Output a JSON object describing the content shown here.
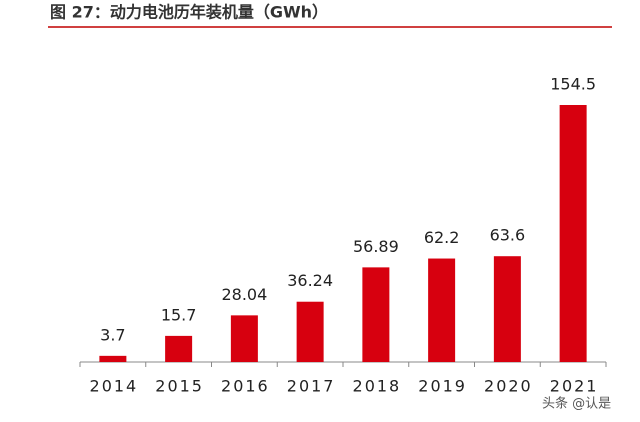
{
  "chart_data": {
    "type": "bar",
    "title": "图 27：动力电池历年装机量（GWh）",
    "categories": [
      "2014",
      "2015",
      "2016",
      "2017",
      "2018",
      "2019",
      "2020",
      "2021"
    ],
    "values": [
      3.7,
      15.7,
      28.04,
      36.24,
      56.89,
      62.2,
      63.6,
      154.5
    ],
    "color": "#d7000f"
  },
  "watermark": "头条 @认是"
}
